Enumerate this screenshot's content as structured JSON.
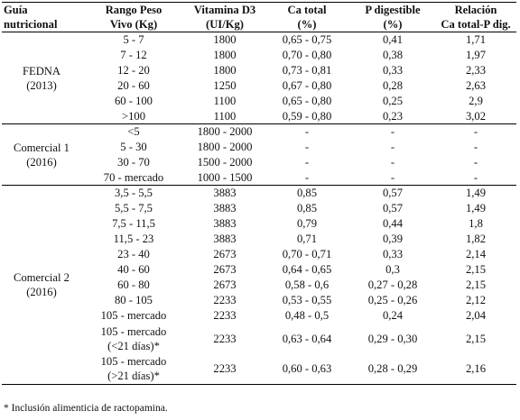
{
  "headers": [
    {
      "line1": "Guía",
      "line2": "nutricional"
    },
    {
      "line1": "Rango Peso",
      "line2": "Vivo (Kg)"
    },
    {
      "line1": "Vitamina D3",
      "line2": "(UI/Kg)"
    },
    {
      "line1": "Ca total",
      "line2": "(%)"
    },
    {
      "line1": "P digestible",
      "line2": "(%)"
    },
    {
      "line1": "Relación",
      "line2": "Ca total-P dig."
    }
  ],
  "groups": [
    {
      "name_line1": "FEDNA",
      "name_line2": "(2013)",
      "rows": [
        {
          "peso": "5 - 7",
          "vitd3": "1800",
          "ca": "0,65 - 0,75",
          "p": "0,41",
          "rel": "1,71"
        },
        {
          "peso": "7 - 12",
          "vitd3": "1800",
          "ca": "0,70 - 0,80",
          "p": "0,38",
          "rel": "1,97"
        },
        {
          "peso": "12 - 20",
          "vitd3": "1800",
          "ca": "0,73 - 0,81",
          "p": "0,33",
          "rel": "2,33"
        },
        {
          "peso": "20 - 60",
          "vitd3": "1250",
          "ca": "0,67 - 0,80",
          "p": "0,28",
          "rel": "2,63"
        },
        {
          "peso": "60 - 100",
          "vitd3": "1100",
          "ca": "0,65 - 0,80",
          "p": "0,25",
          "rel": "2,9"
        },
        {
          "peso": ">100",
          "vitd3": "1100",
          "ca": "0,59 - 0,80",
          "p": "0,23",
          "rel": "3,02"
        }
      ]
    },
    {
      "name_line1": "Comercial 1",
      "name_line2": "(2016)",
      "rows": [
        {
          "peso": "<5",
          "vitd3": "1800 - 2000",
          "ca": "-",
          "p": "-",
          "rel": "-"
        },
        {
          "peso": "5 - 30",
          "vitd3": "1800 - 2000",
          "ca": "-",
          "p": "-",
          "rel": "-"
        },
        {
          "peso": "30 - 70",
          "vitd3": "1500 - 2000",
          "ca": "-",
          "p": "-",
          "rel": "-"
        },
        {
          "peso": "70 - mercado",
          "vitd3": "1000 - 1500",
          "ca": "-",
          "p": "-",
          "rel": "-"
        }
      ]
    },
    {
      "name_line1": "Comercial 2",
      "name_line2": "(2016)",
      "rows": [
        {
          "peso": "3,5 - 5,5",
          "vitd3": "3883",
          "ca": "0,85",
          "p": "0,57",
          "rel": "1,49"
        },
        {
          "peso": "5,5 - 7,5",
          "vitd3": "3883",
          "ca": "0,85",
          "p": "0,57",
          "rel": "1,49"
        },
        {
          "peso": "7,5 - 11,5",
          "vitd3": "3883",
          "ca": "0,79",
          "p": "0,44",
          "rel": "1,8"
        },
        {
          "peso": "11,5 - 23",
          "vitd3": "3883",
          "ca": "0,71",
          "p": "0,39",
          "rel": "1,82"
        },
        {
          "peso": "23 - 40",
          "vitd3": "2673",
          "ca": "0,70 - 0,71",
          "p": "0,33",
          "rel": "2,14"
        },
        {
          "peso": "40 - 60",
          "vitd3": "2673",
          "ca": "0,64 - 0,65",
          "p": "0,3",
          "rel": "2,15"
        },
        {
          "peso": "60 - 80",
          "vitd3": "2673",
          "ca": "0,58 - 0,6",
          "p": "0,27 - 0,28",
          "rel": "2,15"
        },
        {
          "peso": "80 - 105",
          "vitd3": "2233",
          "ca": "0,53 - 0,55",
          "p": "0,25 - 0,26",
          "rel": "2,12"
        },
        {
          "peso": "105 - mercado",
          "vitd3": "2233",
          "ca": "0,48 - 0,5",
          "p": "0,24",
          "rel": "2,04"
        },
        {
          "peso": "105 - mercado",
          "peso2": "(<21 días)*",
          "vitd3": "2233",
          "ca": "0,63 - 0,64",
          "p": "0,29 - 0,30",
          "rel": "2,15"
        },
        {
          "peso": "105 - mercado",
          "peso2": "(>21 días)*",
          "vitd3": "2233",
          "ca": "0,60 - 0,63",
          "p": "0,28 - 0,29",
          "rel": "2,16"
        }
      ]
    }
  ],
  "footnote": "* Inclusión alimenticia de ractopamina."
}
